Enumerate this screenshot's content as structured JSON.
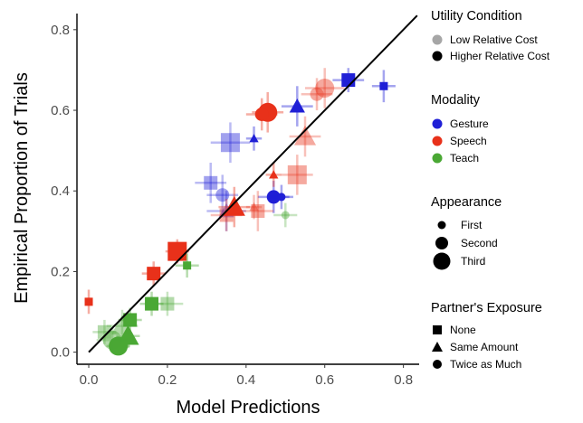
{
  "colors": {
    "gesture": "#1f1fd6",
    "speech": "#e8311a",
    "teach": "#4aa834",
    "low_cost": "#a6a6a6",
    "high_cost": "#000000"
  },
  "chart_data": {
    "type": "scatter",
    "title": "",
    "xlabel": "Model Predictions",
    "ylabel": "Empirical Proportion of Trials",
    "xlim": [
      -0.03,
      0.84
    ],
    "ylim": [
      -0.03,
      0.84
    ],
    "x_ticks": [
      "0.0",
      "0.2",
      "0.4",
      "0.6",
      "0.8"
    ],
    "y_ticks": [
      "0.0",
      "0.2",
      "0.4",
      "0.6",
      "0.8"
    ],
    "reference_line": "y = x",
    "grid": false,
    "legend_position": "right",
    "legend": {
      "utility": {
        "title": "Utility Condition",
        "items": [
          {
            "label": "Low Relative Cost",
            "color": "#a6a6a6"
          },
          {
            "label": "Higher Relative Cost",
            "color": "#000000"
          }
        ]
      },
      "modality": {
        "title": "Modality",
        "items": [
          {
            "label": "Gesture",
            "color": "#1f1fd6"
          },
          {
            "label": "Speech",
            "color": "#e8311a"
          },
          {
            "label": "Teach",
            "color": "#4aa834"
          }
        ]
      },
      "appearance": {
        "title": "Appearance",
        "items": [
          {
            "label": "First",
            "size": "small"
          },
          {
            "label": "Second",
            "size": "medium"
          },
          {
            "label": "Third",
            "size": "large"
          }
        ]
      },
      "exposure": {
        "title": "Partner's Exposure",
        "items": [
          {
            "label": "None",
            "shape": "square"
          },
          {
            "label": "Same Amount",
            "shape": "triangle"
          },
          {
            "label": "Twice as Much",
            "shape": "circle"
          }
        ]
      }
    },
    "points": [
      {
        "modality": "gesture",
        "cost": "high",
        "appearance": 2,
        "exposure": "none",
        "x": 0.66,
        "y": 0.675,
        "xerr": 0.04,
        "yerr": 0.03
      },
      {
        "modality": "gesture",
        "cost": "high",
        "appearance": 1,
        "exposure": "none",
        "x": 0.75,
        "y": 0.66,
        "xerr": 0.03,
        "yerr": 0.04
      },
      {
        "modality": "gesture",
        "cost": "high",
        "appearance": 2,
        "exposure": "same",
        "x": 0.53,
        "y": 0.61,
        "xerr": 0.04,
        "yerr": 0.05
      },
      {
        "modality": "gesture",
        "cost": "high",
        "appearance": 1,
        "exposure": "same",
        "x": 0.42,
        "y": 0.53,
        "xerr": 0.02,
        "yerr": 0.03
      },
      {
        "modality": "gesture",
        "cost": "high",
        "appearance": 2,
        "exposure": "twice",
        "x": 0.47,
        "y": 0.385,
        "xerr": 0.04,
        "yerr": 0.04
      },
      {
        "modality": "gesture",
        "cost": "high",
        "appearance": 1,
        "exposure": "twice",
        "x": 0.49,
        "y": 0.385,
        "xerr": 0.03,
        "yerr": 0.03
      },
      {
        "modality": "gesture",
        "cost": "low",
        "appearance": 3,
        "exposure": "none",
        "x": 0.36,
        "y": 0.52,
        "xerr": 0.05,
        "yerr": 0.05
      },
      {
        "modality": "gesture",
        "cost": "low",
        "appearance": 2,
        "exposure": "none",
        "x": 0.31,
        "y": 0.42,
        "xerr": 0.04,
        "yerr": 0.05
      },
      {
        "modality": "gesture",
        "cost": "low",
        "appearance": 2,
        "exposure": "same",
        "x": 0.35,
        "y": 0.35,
        "xerr": 0.05,
        "yerr": 0.05
      },
      {
        "modality": "gesture",
        "cost": "low",
        "appearance": 2,
        "exposure": "twice",
        "x": 0.34,
        "y": 0.39,
        "xerr": 0.04,
        "yerr": 0.05
      },
      {
        "modality": "speech",
        "cost": "high",
        "appearance": 3,
        "exposure": "twice",
        "x": 0.455,
        "y": 0.595,
        "xerr": 0.04,
        "yerr": 0.05
      },
      {
        "modality": "speech",
        "cost": "high",
        "appearance": 2,
        "exposure": "twice",
        "x": 0.44,
        "y": 0.59,
        "xerr": 0.04,
        "yerr": 0.04
      },
      {
        "modality": "speech",
        "cost": "high",
        "appearance": 3,
        "exposure": "same",
        "x": 0.37,
        "y": 0.36,
        "xerr": 0.04,
        "yerr": 0.05
      },
      {
        "modality": "speech",
        "cost": "high",
        "appearance": 1,
        "exposure": "same",
        "x": 0.47,
        "y": 0.44,
        "xerr": 0.02,
        "yerr": 0.03
      },
      {
        "modality": "speech",
        "cost": "high",
        "appearance": 3,
        "exposure": "none",
        "x": 0.225,
        "y": 0.25,
        "xerr": 0.03,
        "yerr": 0.03
      },
      {
        "modality": "speech",
        "cost": "high",
        "appearance": 2,
        "exposure": "none",
        "x": 0.165,
        "y": 0.195,
        "xerr": 0.03,
        "yerr": 0.03
      },
      {
        "modality": "speech",
        "cost": "high",
        "appearance": 1,
        "exposure": "none",
        "x": 0.0,
        "y": 0.125,
        "xerr": 0.0,
        "yerr": 0.03
      },
      {
        "modality": "speech",
        "cost": "low",
        "appearance": 3,
        "exposure": "twice",
        "x": 0.6,
        "y": 0.655,
        "xerr": 0.05,
        "yerr": 0.05
      },
      {
        "modality": "speech",
        "cost": "low",
        "appearance": 2,
        "exposure": "twice",
        "x": 0.58,
        "y": 0.64,
        "xerr": 0.04,
        "yerr": 0.04
      },
      {
        "modality": "speech",
        "cost": "low",
        "appearance": 3,
        "exposure": "same",
        "x": 0.55,
        "y": 0.535,
        "xerr": 0.04,
        "yerr": 0.05
      },
      {
        "modality": "speech",
        "cost": "low",
        "appearance": 3,
        "exposure": "none",
        "x": 0.53,
        "y": 0.44,
        "xerr": 0.04,
        "yerr": 0.05
      },
      {
        "modality": "speech",
        "cost": "low",
        "appearance": 2,
        "exposure": "none",
        "x": 0.43,
        "y": 0.35,
        "xerr": 0.04,
        "yerr": 0.05
      },
      {
        "modality": "speech",
        "cost": "low",
        "appearance": 2,
        "exposure": "none",
        "x": 0.35,
        "y": 0.34,
        "xerr": 0.04,
        "yerr": 0.04
      },
      {
        "modality": "speech",
        "cost": "low",
        "appearance": 1,
        "exposure": "same",
        "x": 0.42,
        "y": 0.36,
        "xerr": 0.02,
        "yerr": 0.03
      },
      {
        "modality": "teach",
        "cost": "high",
        "appearance": 3,
        "exposure": "twice",
        "x": 0.075,
        "y": 0.015,
        "xerr": 0.03,
        "yerr": 0.02
      },
      {
        "modality": "teach",
        "cost": "high",
        "appearance": 3,
        "exposure": "same",
        "x": 0.1,
        "y": 0.04,
        "xerr": 0.03,
        "yerr": 0.03
      },
      {
        "modality": "teach",
        "cost": "high",
        "appearance": 2,
        "exposure": "none",
        "x": 0.105,
        "y": 0.08,
        "xerr": 0.03,
        "yerr": 0.03
      },
      {
        "modality": "teach",
        "cost": "high",
        "appearance": 2,
        "exposure": "none",
        "x": 0.16,
        "y": 0.12,
        "xerr": 0.03,
        "yerr": 0.03
      },
      {
        "modality": "teach",
        "cost": "high",
        "appearance": 1,
        "exposure": "none",
        "x": 0.25,
        "y": 0.215,
        "xerr": 0.03,
        "yerr": 0.03
      },
      {
        "modality": "teach",
        "cost": "low",
        "appearance": 3,
        "exposure": "twice",
        "x": 0.06,
        "y": 0.03,
        "xerr": 0.04,
        "yerr": 0.03
      },
      {
        "modality": "teach",
        "cost": "low",
        "appearance": 3,
        "exposure": "same",
        "x": 0.085,
        "y": 0.065,
        "xerr": 0.04,
        "yerr": 0.04
      },
      {
        "modality": "teach",
        "cost": "low",
        "appearance": 2,
        "exposure": "none",
        "x": 0.2,
        "y": 0.12,
        "xerr": 0.04,
        "yerr": 0.03
      },
      {
        "modality": "teach",
        "cost": "low",
        "appearance": 2,
        "exposure": "none",
        "x": 0.04,
        "y": 0.05,
        "xerr": 0.03,
        "yerr": 0.03
      },
      {
        "modality": "teach",
        "cost": "low",
        "appearance": 1,
        "exposure": "twice",
        "x": 0.5,
        "y": 0.34,
        "xerr": 0.03,
        "yerr": 0.03
      }
    ]
  }
}
